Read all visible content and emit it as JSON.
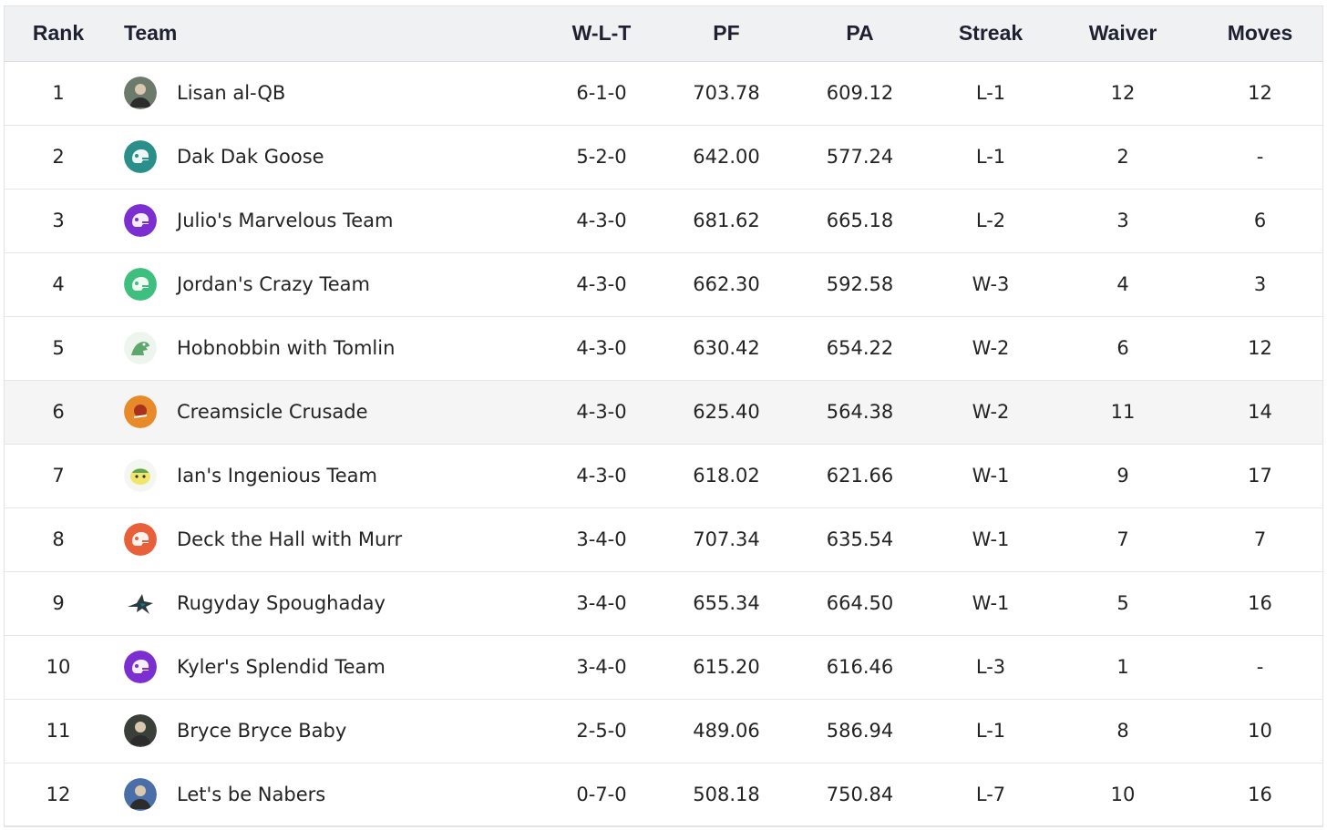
{
  "headers": {
    "rank": "Rank",
    "team": "Team",
    "wlt": "W-L-T",
    "pf": "PF",
    "pa": "PA",
    "streak": "Streak",
    "waiver": "Waiver",
    "moves": "Moves"
  },
  "rows": [
    {
      "rank": "1",
      "team": "Lisan al-QB",
      "wlt": "6-1-0",
      "pf": "703.78",
      "pa": "609.12",
      "streak": "L-1",
      "waiver": "12",
      "moves": "12",
      "avatar_icon": "person-photo-icon",
      "avatar_color": "#6b7a6a"
    },
    {
      "rank": "2",
      "team": "Dak Dak Goose",
      "wlt": "5-2-0",
      "pf": "642.00",
      "pa": "577.24",
      "streak": "L-1",
      "waiver": "2",
      "moves": "-",
      "avatar_icon": "helmet-icon",
      "avatar_color": "#2a8f8a"
    },
    {
      "rank": "3",
      "team": "Julio's Marvelous Team",
      "wlt": "4-3-0",
      "pf": "681.62",
      "pa": "665.18",
      "streak": "L-2",
      "waiver": "3",
      "moves": "6",
      "avatar_icon": "helmet-icon",
      "avatar_color": "#7b2fd0"
    },
    {
      "rank": "4",
      "team": "Jordan's Crazy Team",
      "wlt": "4-3-0",
      "pf": "662.30",
      "pa": "592.58",
      "streak": "W-3",
      "waiver": "4",
      "moves": "3",
      "avatar_icon": "helmet-icon",
      "avatar_color": "#3fbf7f"
    },
    {
      "rank": "5",
      "team": "Hobnobbin with Tomlin",
      "wlt": "4-3-0",
      "pf": "630.42",
      "pa": "654.22",
      "streak": "W-2",
      "waiver": "6",
      "moves": "12",
      "avatar_icon": "dinosaur-icon",
      "avatar_color": "#5da86a"
    },
    {
      "rank": "6",
      "team": "Creamsicle Crusade",
      "wlt": "4-3-0",
      "pf": "625.40",
      "pa": "564.38",
      "streak": "W-2",
      "waiver": "11",
      "moves": "14",
      "avatar_icon": "pirate-logo-icon",
      "avatar_color": "#e88a2a"
    },
    {
      "rank": "7",
      "team": "Ian's Ingenious Team",
      "wlt": "4-3-0",
      "pf": "618.02",
      "pa": "621.66",
      "streak": "W-1",
      "waiver": "9",
      "moves": "17",
      "avatar_icon": "cartoon-face-icon",
      "avatar_color": "#f2e56b"
    },
    {
      "rank": "8",
      "team": "Deck the Hall with Murr",
      "wlt": "3-4-0",
      "pf": "707.34",
      "pa": "635.54",
      "streak": "W-1",
      "waiver": "7",
      "moves": "7",
      "avatar_icon": "helmet-icon",
      "avatar_color": "#e8603a"
    },
    {
      "rank": "9",
      "team": "Rugyday Spoughaday",
      "wlt": "3-4-0",
      "pf": "655.34",
      "pa": "664.50",
      "streak": "W-1",
      "waiver": "5",
      "moves": "16",
      "avatar_icon": "shark-icon",
      "avatar_color": "#2b3a3f"
    },
    {
      "rank": "10",
      "team": "Kyler's Splendid Team",
      "wlt": "3-4-0",
      "pf": "615.20",
      "pa": "616.46",
      "streak": "L-3",
      "waiver": "1",
      "moves": "-",
      "avatar_icon": "helmet-icon",
      "avatar_color": "#7b2fd0"
    },
    {
      "rank": "11",
      "team": "Bryce Bryce Baby",
      "wlt": "2-5-0",
      "pf": "489.06",
      "pa": "586.94",
      "streak": "L-1",
      "waiver": "8",
      "moves": "10",
      "avatar_icon": "person-photo-icon",
      "avatar_color": "#3a3f3a"
    },
    {
      "rank": "12",
      "team": "Let's be Nabers",
      "wlt": "0-7-0",
      "pf": "508.18",
      "pa": "750.84",
      "streak": "L-7",
      "waiver": "10",
      "moves": "16",
      "avatar_icon": "person-photo-icon",
      "avatar_color": "#4a6fa8"
    }
  ],
  "highlighted_rank": "6"
}
